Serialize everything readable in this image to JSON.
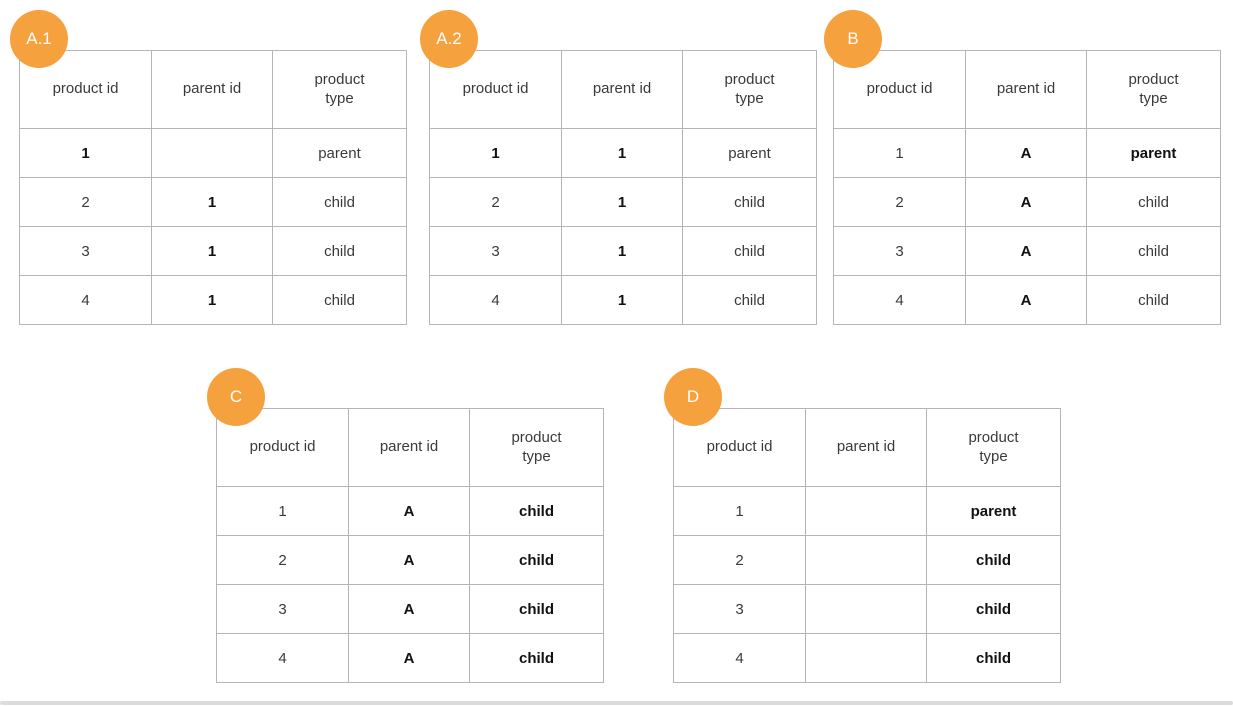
{
  "style": {
    "badge_color": "#F5A13D",
    "badge_text_color": "#ffffff",
    "table_border_color": "#b5b5b5",
    "page_background": "#ffffff",
    "bottom_edge_color": "#dcdcdc"
  },
  "columns": [
    "product id",
    "parent id",
    "product type"
  ],
  "tables": [
    {
      "label": "A.1",
      "rows": [
        {
          "cells": [
            {
              "text": "1",
              "bold": true
            },
            {
              "text": "",
              "bold": false
            },
            {
              "text": "parent",
              "bold": false
            }
          ]
        },
        {
          "cells": [
            {
              "text": "2",
              "bold": false
            },
            {
              "text": "1",
              "bold": true
            },
            {
              "text": "child",
              "bold": false
            }
          ]
        },
        {
          "cells": [
            {
              "text": "3",
              "bold": false
            },
            {
              "text": "1",
              "bold": true
            },
            {
              "text": "child",
              "bold": false
            }
          ]
        },
        {
          "cells": [
            {
              "text": "4",
              "bold": false
            },
            {
              "text": "1",
              "bold": true
            },
            {
              "text": "child",
              "bold": false
            }
          ]
        }
      ]
    },
    {
      "label": "A.2",
      "rows": [
        {
          "cells": [
            {
              "text": "1",
              "bold": true
            },
            {
              "text": "1",
              "bold": true
            },
            {
              "text": "parent",
              "bold": false
            }
          ]
        },
        {
          "cells": [
            {
              "text": "2",
              "bold": false
            },
            {
              "text": "1",
              "bold": true
            },
            {
              "text": "child",
              "bold": false
            }
          ]
        },
        {
          "cells": [
            {
              "text": "3",
              "bold": false
            },
            {
              "text": "1",
              "bold": true
            },
            {
              "text": "child",
              "bold": false
            }
          ]
        },
        {
          "cells": [
            {
              "text": "4",
              "bold": false
            },
            {
              "text": "1",
              "bold": true
            },
            {
              "text": "child",
              "bold": false
            }
          ]
        }
      ]
    },
    {
      "label": "B",
      "rows": [
        {
          "cells": [
            {
              "text": "1",
              "bold": false
            },
            {
              "text": "A",
              "bold": true
            },
            {
              "text": "parent",
              "bold": true
            }
          ]
        },
        {
          "cells": [
            {
              "text": "2",
              "bold": false
            },
            {
              "text": "A",
              "bold": true
            },
            {
              "text": "child",
              "bold": false
            }
          ]
        },
        {
          "cells": [
            {
              "text": "3",
              "bold": false
            },
            {
              "text": "A",
              "bold": true
            },
            {
              "text": "child",
              "bold": false
            }
          ]
        },
        {
          "cells": [
            {
              "text": "4",
              "bold": false
            },
            {
              "text": "A",
              "bold": true
            },
            {
              "text": "child",
              "bold": false
            }
          ]
        }
      ]
    },
    {
      "label": "C",
      "rows": [
        {
          "cells": [
            {
              "text": "1",
              "bold": false
            },
            {
              "text": "A",
              "bold": true
            },
            {
              "text": "child",
              "bold": true
            }
          ]
        },
        {
          "cells": [
            {
              "text": "2",
              "bold": false
            },
            {
              "text": "A",
              "bold": true
            },
            {
              "text": "child",
              "bold": true
            }
          ]
        },
        {
          "cells": [
            {
              "text": "3",
              "bold": false
            },
            {
              "text": "A",
              "bold": true
            },
            {
              "text": "child",
              "bold": true
            }
          ]
        },
        {
          "cells": [
            {
              "text": "4",
              "bold": false
            },
            {
              "text": "A",
              "bold": true
            },
            {
              "text": "child",
              "bold": true
            }
          ]
        }
      ]
    },
    {
      "label": "D",
      "rows": [
        {
          "cells": [
            {
              "text": "1",
              "bold": false
            },
            {
              "text": "",
              "bold": false
            },
            {
              "text": "parent",
              "bold": true
            }
          ]
        },
        {
          "cells": [
            {
              "text": "2",
              "bold": false
            },
            {
              "text": "",
              "bold": false
            },
            {
              "text": "child",
              "bold": true
            }
          ]
        },
        {
          "cells": [
            {
              "text": "3",
              "bold": false
            },
            {
              "text": "",
              "bold": false
            },
            {
              "text": "child",
              "bold": true
            }
          ]
        },
        {
          "cells": [
            {
              "text": "4",
              "bold": false
            },
            {
              "text": "",
              "bold": false
            },
            {
              "text": "child",
              "bold": true
            }
          ]
        }
      ]
    }
  ]
}
